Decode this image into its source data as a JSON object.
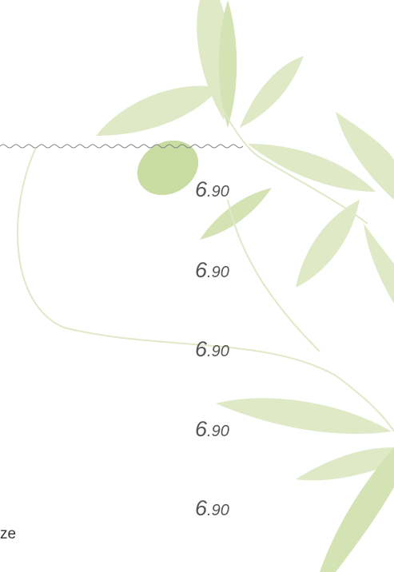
{
  "menu": {
    "prices": [
      {
        "main": "6",
        "decimal": ".90"
      },
      {
        "main": "6",
        "decimal": ".90"
      },
      {
        "main": "6",
        "decimal": ".90"
      },
      {
        "main": "6",
        "decimal": ".90"
      },
      {
        "main": "6",
        "decimal": ".90"
      }
    ],
    "item_fragment": "ze"
  }
}
